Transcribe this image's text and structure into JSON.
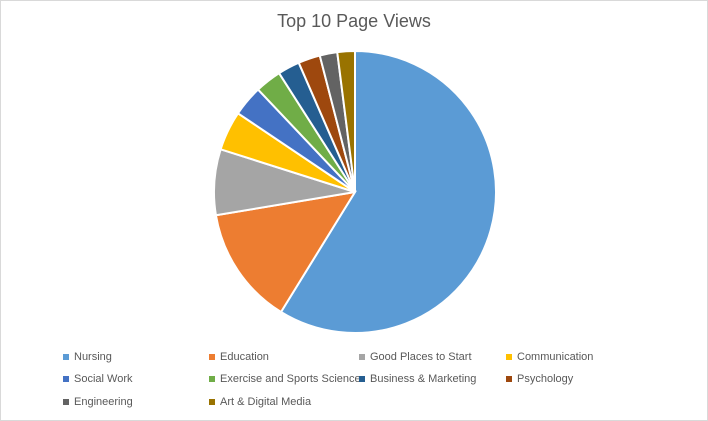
{
  "chart_data": {
    "type": "pie",
    "title": "Top 10 Page Views",
    "categories": [
      "Nursing",
      "Education",
      "Good Places to Start",
      "Communication",
      "Social Work",
      "Exercise and Sports Science",
      "Business & Marketing",
      "Psychology",
      "Engineering",
      "Art & Digital Media"
    ],
    "values": [
      58.5,
      13.5,
      7.5,
      4.5,
      3.5,
      3.0,
      2.5,
      2.5,
      2.0,
      2.0
    ],
    "value_unit": "percent",
    "colors": [
      "#5b9bd5",
      "#ed7d31",
      "#a5a5a5",
      "#ffc000",
      "#4472c4",
      "#70ad47",
      "#255e91",
      "#9e480e",
      "#636363",
      "#997300"
    ],
    "legend_position": "bottom"
  }
}
